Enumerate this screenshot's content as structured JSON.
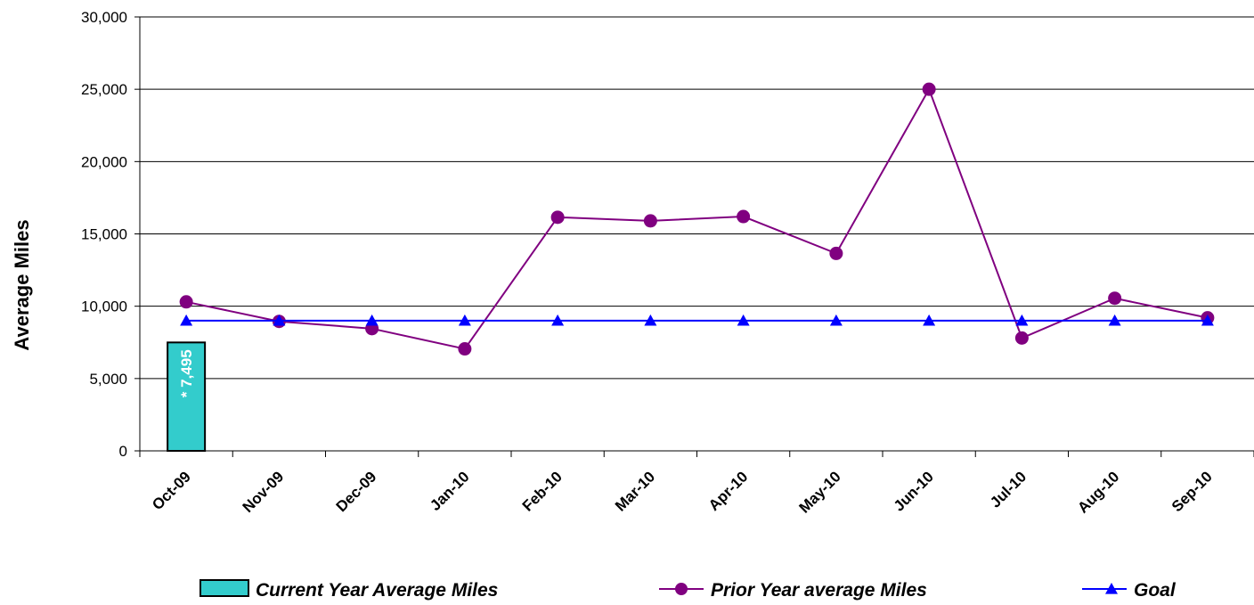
{
  "chart_data": {
    "type": "bar",
    "title": "",
    "xlabel": "",
    "ylabel": "Average Miles",
    "ylim": [
      0,
      30000
    ],
    "y_ticks": [
      "0",
      "5,000",
      "10,000",
      "15,000",
      "20,000",
      "25,000",
      "30,000"
    ],
    "categories": [
      "Oct-09",
      "Nov-09",
      "Dec-09",
      "Jan-10",
      "Feb-10",
      "Mar-10",
      "Apr-10",
      "May-10",
      "Jun-10",
      "Jul-10",
      "Aug-10",
      "Sep-10"
    ],
    "grid": true,
    "legend_position": "bottom",
    "series": [
      {
        "name": "Current Year Average Miles",
        "kind": "bar",
        "color": "#33CCCC",
        "values": [
          7495,
          null,
          null,
          null,
          null,
          null,
          null,
          null,
          null,
          null,
          null,
          null
        ],
        "data_labels": [
          "* 7,495",
          null,
          null,
          null,
          null,
          null,
          null,
          null,
          null,
          null,
          null,
          null
        ]
      },
      {
        "name": "Prior Year average Miles",
        "kind": "line",
        "marker": "circle",
        "color": "#800080",
        "values": [
          10300,
          8950,
          8450,
          7050,
          16150,
          15900,
          16200,
          13650,
          25000,
          7800,
          10550,
          9200
        ]
      },
      {
        "name": "Goal",
        "kind": "line",
        "marker": "triangle",
        "color": "#0000FF",
        "values": [
          9000,
          9000,
          9000,
          9000,
          9000,
          9000,
          9000,
          9000,
          9000,
          9000,
          9000,
          9000
        ]
      }
    ]
  }
}
